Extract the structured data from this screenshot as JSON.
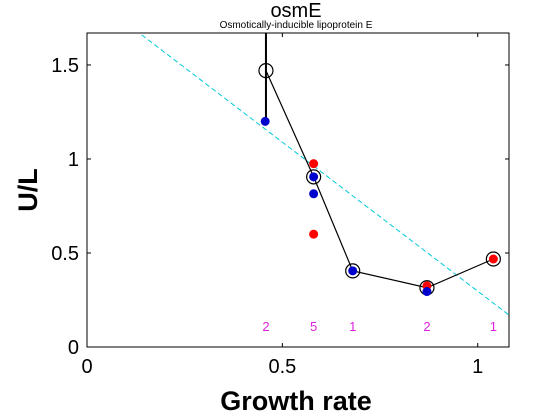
{
  "chart_data": {
    "type": "scatter",
    "title": "osmE",
    "subtitle": "Osmotically-inducible lipoprotein E",
    "xlabel": "Growth rate",
    "ylabel": "U/L",
    "xlim": [
      0,
      1.08
    ],
    "ylim": [
      0,
      1.67
    ],
    "x_ticks": [
      0,
      0.5,
      1
    ],
    "x_tick_labels": [
      "0",
      "0.5",
      "1"
    ],
    "y_ticks": [
      0,
      0.5,
      1,
      1.5
    ],
    "y_tick_labels": [
      "0",
      "0.5",
      "1",
      "1.5"
    ],
    "grid": false,
    "series": [
      {
        "role": "mean-line",
        "color": "#000000",
        "points": [
          [
            0.458,
            1.47
          ],
          [
            0.58,
            0.905
          ],
          [
            0.68,
            0.405
          ],
          [
            0.87,
            0.315
          ],
          [
            1.04,
            0.468
          ]
        ]
      },
      {
        "role": "blue-samples",
        "color": "#0000cc",
        "points": [
          [
            0.456,
            1.2
          ],
          [
            0.58,
            0.905
          ],
          [
            0.58,
            0.815
          ],
          [
            0.68,
            0.405
          ],
          [
            0.87,
            0.295
          ]
        ]
      },
      {
        "role": "red-samples",
        "color": "#ff0000",
        "points": [
          [
            0.58,
            0.975
          ],
          [
            0.58,
            0.6
          ],
          [
            0.87,
            0.325
          ],
          [
            1.04,
            0.468
          ]
        ]
      }
    ],
    "error_bar": {
      "x": 0.458,
      "y_low": 1.2,
      "y_high": 1.67
    },
    "fit_line": {
      "color": "#00c8d8",
      "style": "dashed",
      "from": [
        0.14,
        1.66
      ],
      "to": [
        1.08,
        0.17
      ]
    },
    "counts": [
      {
        "x": 0.458,
        "label": "2"
      },
      {
        "x": 0.58,
        "label": "5"
      },
      {
        "x": 0.68,
        "label": "1"
      },
      {
        "x": 0.87,
        "label": "2"
      },
      {
        "x": 1.04,
        "label": "1"
      }
    ]
  }
}
